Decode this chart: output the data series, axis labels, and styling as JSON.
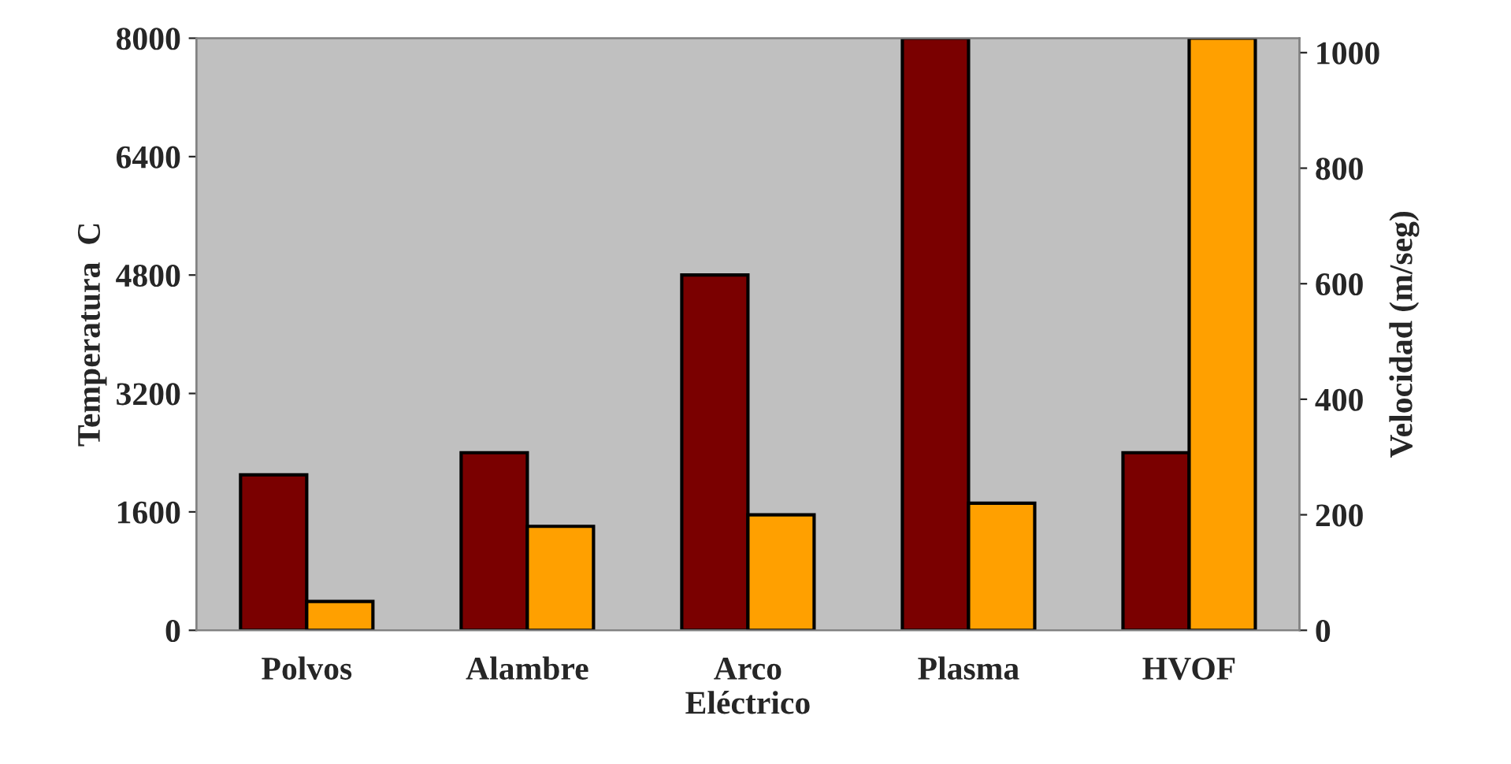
{
  "chart_data": {
    "type": "bar",
    "categories": [
      "Polvos",
      "Alambre",
      "Arco\nEléctrico",
      "Plasma",
      "HVOF"
    ],
    "ylabel": "Temperatura  C",
    "y2label": "Velocidad (m/seg)",
    "ylim": [
      0,
      8000
    ],
    "yticks": [
      0,
      1600,
      3200,
      4800,
      6400,
      8000
    ],
    "y2lim": [
      0,
      1025
    ],
    "y2ticks": [
      0,
      200,
      400,
      600,
      800,
      1000
    ],
    "grid": false,
    "series": [
      {
        "color": "#7a0000",
        "values": [
          2100,
          2400,
          4800,
          8000,
          2400
        ]
      },
      {
        "color": "#ffa000",
        "axis": "y2",
        "values": [
          50,
          180,
          200,
          220,
          1025
        ]
      }
    ]
  }
}
